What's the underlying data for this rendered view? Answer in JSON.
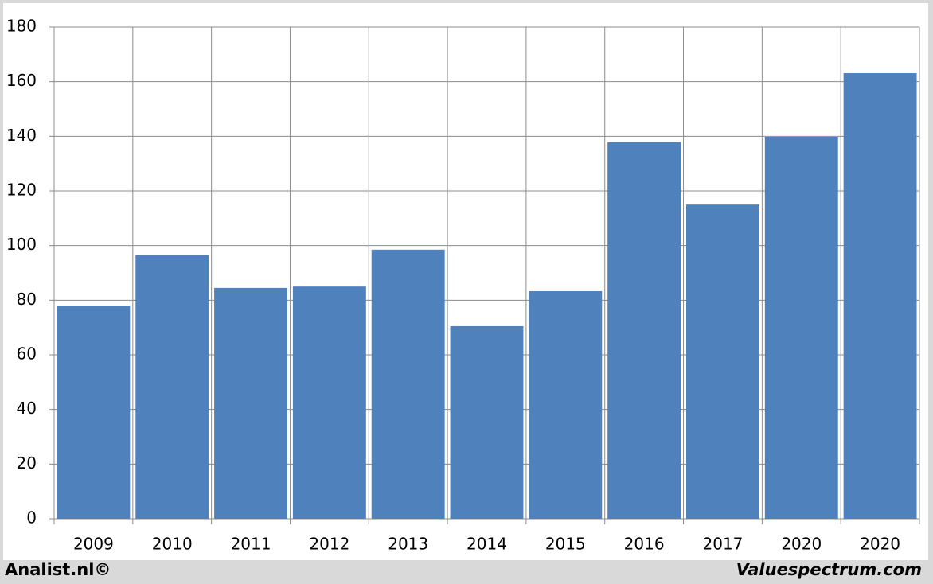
{
  "chart_data": {
    "type": "bar",
    "categories": [
      "2009",
      "2010",
      "2011",
      "2012",
      "2013",
      "2014",
      "2015",
      "2016",
      "2017",
      "2020",
      "2020"
    ],
    "values": [
      78,
      96.5,
      84.5,
      85,
      98.5,
      70.5,
      83.3,
      137.8,
      115,
      139.8,
      163.1
    ],
    "color": "#4f81bd",
    "ylim": [
      0,
      180
    ],
    "yticks": [
      0,
      20,
      40,
      60,
      80,
      100,
      120,
      140,
      160,
      180
    ],
    "grid": true,
    "annotations": [
      "Analist.nl©",
      "Valuespectrum.com"
    ]
  }
}
